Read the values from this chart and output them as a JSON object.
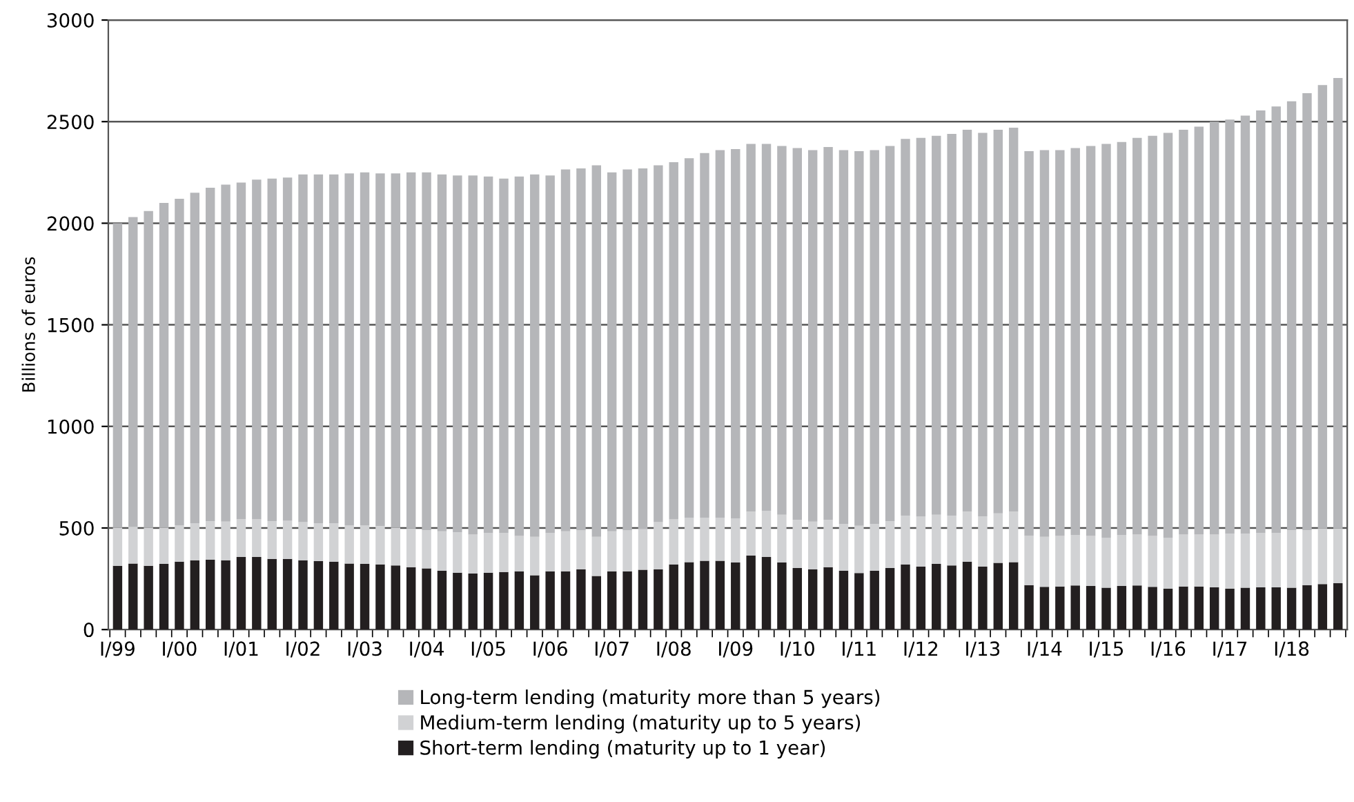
{
  "chart_data": {
    "type": "bar",
    "stacked": true,
    "ylabel": "Billions of euros",
    "categories": [
      "I/99",
      null,
      null,
      null,
      "I/00",
      null,
      null,
      null,
      "I/01",
      null,
      null,
      null,
      "I/02",
      null,
      null,
      null,
      "I/03",
      null,
      null,
      null,
      "I/04",
      null,
      null,
      null,
      "I/05",
      null,
      null,
      null,
      "I/06",
      null,
      null,
      null,
      "I/07",
      null,
      null,
      null,
      "I/08",
      null,
      null,
      null,
      "I/09",
      null,
      null,
      null,
      "I/10",
      null,
      null,
      null,
      "I/11",
      null,
      null,
      null,
      "I/12",
      null,
      null,
      null,
      "I/13",
      null,
      null,
      null,
      "I/14",
      null,
      null,
      null,
      "I/15",
      null,
      null,
      null,
      "I/16",
      null,
      null,
      null,
      "I/17",
      null,
      null,
      null,
      "I/18",
      null,
      null,
      null
    ],
    "series": [
      {
        "name": "Short-term lending (maturity up to 1 year)",
        "color": "#231f20",
        "values": [
          314,
          325,
          314,
          323,
          334,
          341,
          344,
          341,
          357,
          357,
          348,
          348,
          341,
          337,
          334,
          325,
          323,
          321,
          316,
          307,
          301,
          289,
          280,
          276,
          280,
          283,
          287,
          267,
          287,
          287,
          296,
          264,
          287,
          287,
          294,
          296,
          321,
          332,
          339,
          339,
          330,
          364,
          357,
          330,
          303,
          296,
          307,
          289,
          278,
          289,
          303,
          321,
          310,
          323,
          316,
          334,
          310,
          328,
          332,
          219,
          210,
          212,
          217,
          215,
          206,
          215,
          217,
          210,
          201,
          212,
          212,
          208,
          201,
          206,
          208,
          208,
          206,
          219,
          224,
          228
        ]
      },
      {
        "name": "Medium-term lending (maturity up to 5 years)",
        "color": "#d1d2d4",
        "values": [
          188,
          181,
          188,
          179,
          179,
          183,
          189,
          190,
          185,
          185,
          185,
          188,
          188,
          187,
          190,
          188,
          190,
          188,
          186,
          190,
          189,
          195,
          199,
          192,
          195,
          192,
          174,
          190,
          188,
          197,
          192,
          193,
          197,
          201,
          201,
          233,
          221,
          219,
          212,
          212,
          217,
          217,
          228,
          235,
          237,
          235,
          233,
          231,
          233,
          231,
          230,
          239,
          246,
          242,
          244,
          247,
          248,
          244,
          249,
          244,
          247,
          249,
          249,
          246,
          246,
          251,
          251,
          251,
          251,
          256,
          256,
          260,
          271,
          266,
          267,
          267,
          284,
          271,
          273,
          269
        ]
      },
      {
        "name": "Long-term lending (maturity more than 5 years)",
        "color": "#b5b6b9",
        "values": [
          1498,
          1524,
          1558,
          1598,
          1607,
          1626,
          1642,
          1659,
          1658,
          1673,
          1687,
          1689,
          1711,
          1716,
          1716,
          1732,
          1737,
          1736,
          1743,
          1753,
          1760,
          1756,
          1756,
          1767,
          1755,
          1745,
          1769,
          1783,
          1760,
          1781,
          1782,
          1828,
          1766,
          1777,
          1775,
          1756,
          1758,
          1769,
          1794,
          1809,
          1818,
          1809,
          1805,
          1815,
          1830,
          1829,
          1835,
          1840,
          1844,
          1840,
          1847,
          1855,
          1864,
          1865,
          1880,
          1879,
          1887,
          1888,
          1889,
          1892,
          1903,
          1899,
          1904,
          1919,
          1938,
          1934,
          1952,
          1969,
          1993,
          1992,
          2007,
          2032,
          2038,
          2058,
          2080,
          2100,
          2110,
          2150,
          2183,
          2218
        ]
      }
    ],
    "ylim": [
      0,
      3000
    ],
    "yticks": [
      0,
      500,
      1000,
      1500,
      2000,
      2500,
      3000
    ],
    "grid": "y",
    "legend": "bottom"
  }
}
